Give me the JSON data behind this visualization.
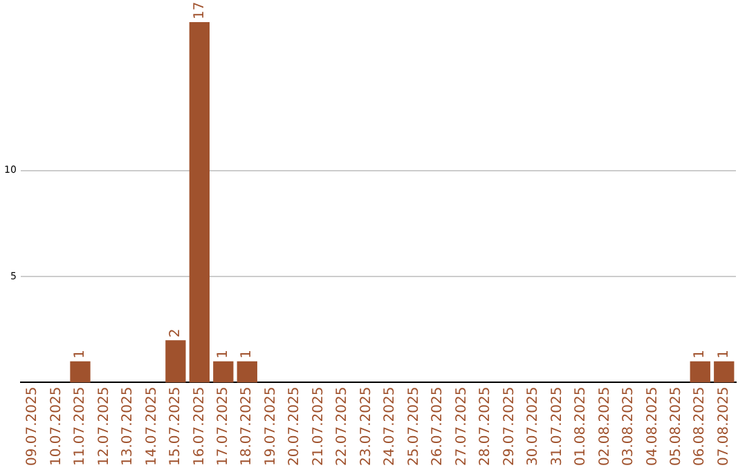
{
  "chart_data": {
    "type": "bar",
    "categories": [
      "09.07.2025",
      "10.07.2025",
      "11.07.2025",
      "12.07.2025",
      "13.07.2025",
      "14.07.2025",
      "15.07.2025",
      "16.07.2025",
      "17.07.2025",
      "18.07.2025",
      "19.07.2025",
      "20.07.2025",
      "21.07.2025",
      "22.07.2025",
      "23.07.2025",
      "24.07.2025",
      "25.07.2025",
      "26.07.2025",
      "27.07.2025",
      "28.07.2025",
      "29.07.2025",
      "30.07.2025",
      "31.07.2025",
      "01.08.2025",
      "02.08.2025",
      "03.08.2025",
      "04.08.2025",
      "05.08.2025",
      "06.08.2025",
      "07.08.2025"
    ],
    "values": [
      0,
      0,
      1,
      0,
      0,
      0,
      2,
      17,
      1,
      1,
      0,
      0,
      0,
      0,
      0,
      0,
      0,
      0,
      0,
      0,
      0,
      0,
      0,
      0,
      0,
      0,
      0,
      0,
      1,
      1
    ],
    "value_labels": [
      null,
      null,
      "1",
      null,
      null,
      null,
      "2",
      "17",
      "1",
      "1",
      null,
      null,
      null,
      null,
      null,
      null,
      null,
      null,
      null,
      null,
      null,
      null,
      null,
      null,
      null,
      null,
      null,
      null,
      "1",
      "1"
    ],
    "color": "#a0522d",
    "ylim": [
      0,
      17
    ],
    "yticks": [
      5,
      10
    ],
    "grid": "y",
    "legend": false
  }
}
